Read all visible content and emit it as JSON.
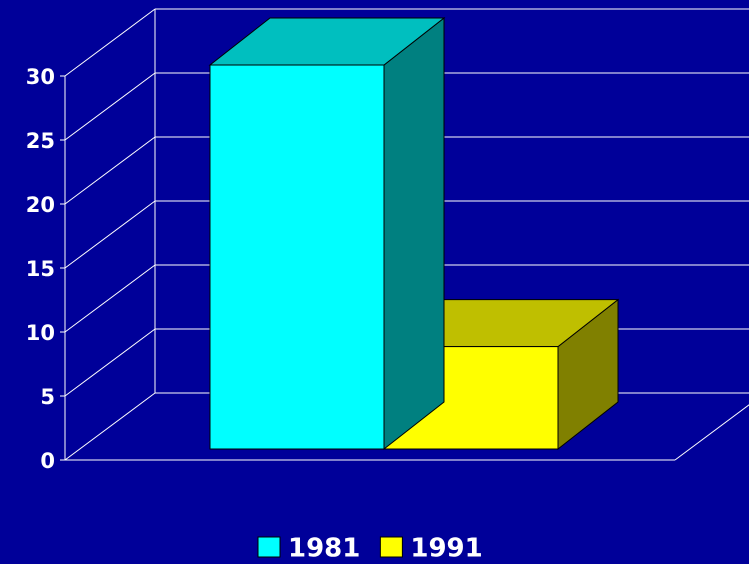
{
  "chart_data": {
    "type": "bar3d",
    "categories": [
      null
    ],
    "series": [
      {
        "name": "1981",
        "color": "#00ffff",
        "values": [
          30
        ]
      },
      {
        "name": "1991",
        "color": "#ffff00",
        "values": [
          8
        ]
      }
    ],
    "ylim": [
      0,
      30
    ],
    "yticks": [
      0,
      5,
      10,
      15,
      20,
      25,
      30
    ],
    "grid": true,
    "legend": "bottom"
  }
}
